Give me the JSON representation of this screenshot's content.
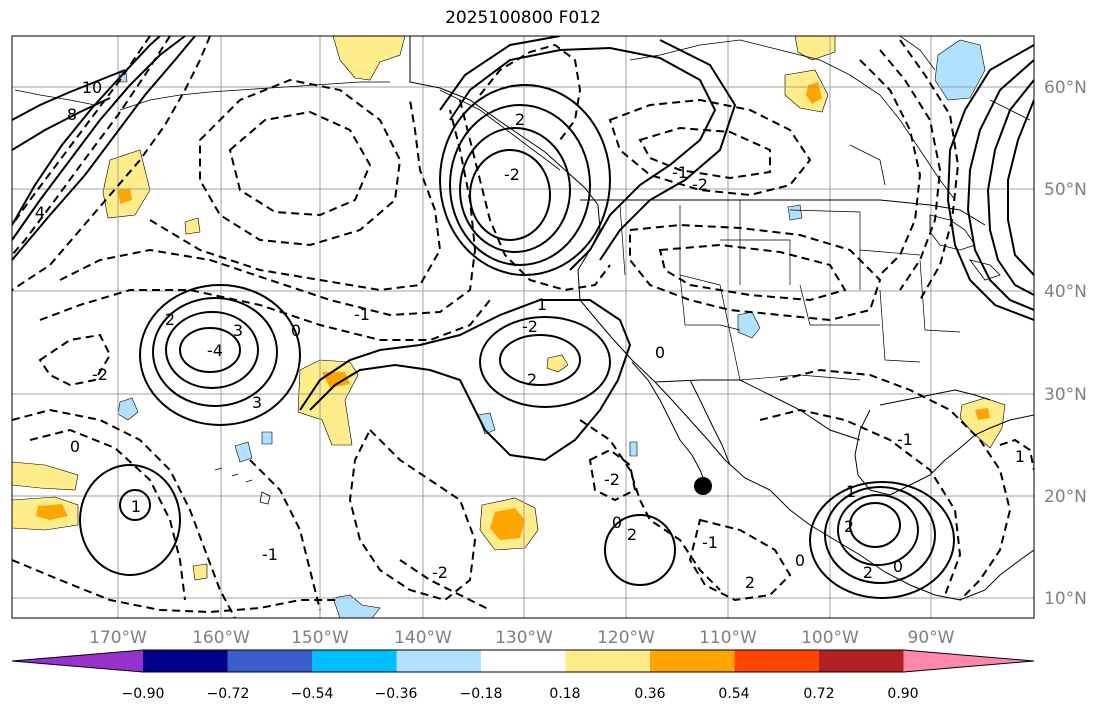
{
  "title": "2025100800 F012",
  "lat_labels": [
    "60°N",
    "50°N",
    "40°N",
    "30°N",
    "20°N",
    "10°N"
  ],
  "lon_labels": [
    "170°W",
    "160°W",
    "150°W",
    "140°W",
    "130°W",
    "120°W",
    "110°W",
    "100°W",
    "90°W"
  ],
  "colorbar": {
    "ticks": [
      "−0.90",
      "−0.72",
      "−0.54",
      "−0.36",
      "−0.18",
      "0.18",
      "0.36",
      "0.54",
      "0.72",
      "0.90"
    ],
    "colors": [
      "#9932cc",
      "#00008b",
      "#3a5fcd",
      "#00bfff",
      "#b0e2ff",
      "#ffffff",
      "#ffec8b",
      "#ffa500",
      "#ff4500",
      "#b22222",
      "#ff88aa"
    ]
  },
  "contour_labels": [
    "10",
    "8",
    "4",
    "2",
    "3",
    "-4",
    "3",
    "0",
    "-1",
    "-2",
    "1",
    "-2",
    "0",
    "2",
    "2",
    "-2",
    "0",
    "-2",
    "1",
    "-1",
    "-2",
    "2",
    "0",
    "-1",
    "1",
    "2",
    "-1",
    "0",
    "2",
    "-1",
    "0",
    "1",
    "-2",
    "2"
  ],
  "colors": {
    "axis_label": "#808080",
    "grid": "#a0a0a0",
    "storm_marker": "#000000"
  }
}
